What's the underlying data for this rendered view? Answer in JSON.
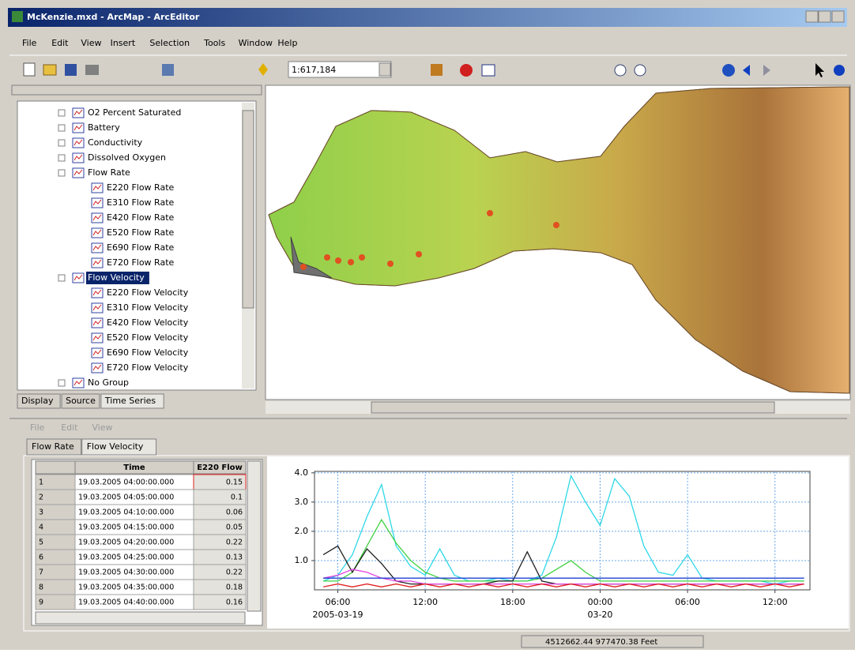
{
  "window_title": "McKenzie.mxd - ArcMap - ArcEditor",
  "menu": [
    "File",
    "Edit",
    "View",
    "Insert",
    "Selection",
    "Tools",
    "Window",
    "Help"
  ],
  "scale": "1:617,184",
  "toc": {
    "items": [
      {
        "label": "O2 Percent Saturated"
      },
      {
        "label": "Battery"
      },
      {
        "label": "Conductivity"
      },
      {
        "label": "Dissolved Oxygen"
      },
      {
        "label": "Flow Rate",
        "children": [
          {
            "label": "E220 Flow Rate"
          },
          {
            "label": "E310 Flow Rate"
          },
          {
            "label": "E420 Flow Rate"
          },
          {
            "label": "E520 Flow Rate"
          },
          {
            "label": "E690 Flow Rate"
          },
          {
            "label": "E720 Flow Rate"
          }
        ]
      },
      {
        "label": "Flow Velocity",
        "selected": true,
        "children": [
          {
            "label": "E220 Flow Velocity"
          },
          {
            "label": "E310 Flow Velocity"
          },
          {
            "label": "E420 Flow Velocity"
          },
          {
            "label": "E520 Flow Velocity"
          },
          {
            "label": "E690 Flow Velocity"
          },
          {
            "label": "E720 Flow Velocity"
          }
        ]
      },
      {
        "label": "No Group"
      }
    ],
    "tabs": [
      "Display",
      "Source",
      "Time Series"
    ]
  },
  "series_panel": {
    "menu": [
      "File",
      "Edit",
      "View"
    ],
    "tabs": [
      "Flow Rate",
      "Flow Velocity"
    ],
    "table": {
      "columns": [
        "Time",
        "E220 Flow"
      ],
      "rows": [
        [
          "1",
          "19.03.2005 04:00:00.000",
          "0.15"
        ],
        [
          "2",
          "19.03.2005 04:05:00.000",
          "0.1"
        ],
        [
          "3",
          "19.03.2005 04:10:00.000",
          "0.06"
        ],
        [
          "4",
          "19.03.2005 04:15:00.000",
          "0.05"
        ],
        [
          "5",
          "19.03.2005 04:20:00.000",
          "0.22"
        ],
        [
          "6",
          "19.03.2005 04:25:00.000",
          "0.13"
        ],
        [
          "7",
          "19.03.2005 04:30:00.000",
          "0.22"
        ],
        [
          "8",
          "19.03.2005 04:35:00.000",
          "0.18"
        ],
        [
          "9",
          "19.03.2005 04:40:00.000",
          "0.16"
        ]
      ]
    }
  },
  "chart_data": {
    "type": "line",
    "x": [
      5,
      6,
      7,
      8,
      9,
      10,
      11,
      12,
      13,
      14,
      15,
      16,
      17,
      18,
      19,
      20,
      21,
      22,
      23,
      24,
      25,
      26,
      27,
      28,
      29,
      30,
      31,
      32,
      33,
      34,
      35,
      36,
      37,
      38
    ],
    "xlim": [
      4.4,
      38.4
    ],
    "xticks": [
      {
        "value": 6,
        "label": "06:00"
      },
      {
        "value": 12,
        "label": "12:00"
      },
      {
        "value": 18,
        "label": "18:00"
      },
      {
        "value": 24,
        "label": "00:00"
      },
      {
        "value": 30,
        "label": "06:00"
      },
      {
        "value": 36,
        "label": "12:00"
      }
    ],
    "xtick_dates": [
      "2005-03-19",
      null,
      null,
      "03-20",
      null,
      null
    ],
    "ylim": [
      0,
      4.05
    ],
    "yticks": [
      {
        "value": 1,
        "label": "1.0"
      },
      {
        "value": 2,
        "label": "2.0"
      },
      {
        "value": 3,
        "label": "3.0"
      },
      {
        "value": 4,
        "label": "4.0"
      }
    ],
    "grid": true,
    "series": [
      {
        "color": "#2fd8e8",
        "values": [
          0.3,
          0.5,
          1.2,
          2.5,
          3.6,
          1.5,
          0.8,
          0.5,
          1.4,
          0.5,
          0.3,
          0.3,
          0.4,
          0.3,
          0.3,
          0.5,
          1.8,
          3.9,
          3.0,
          2.2,
          3.8,
          3.2,
          1.5,
          0.6,
          0.5,
          1.2,
          0.4,
          0.3,
          0.3,
          0.3,
          0.3,
          0.2,
          0.3,
          0.3
        ]
      },
      {
        "color": "#3fd040",
        "values": [
          0.3,
          0.3,
          0.6,
          1.5,
          2.4,
          1.6,
          1.0,
          0.6,
          0.4,
          0.3,
          0.3,
          0.3,
          0.3,
          0.3,
          0.3,
          0.4,
          0.7,
          1.0,
          0.6,
          0.3,
          0.3,
          0.3,
          0.3,
          0.3,
          0.3,
          0.3,
          0.3,
          0.3,
          0.3,
          0.3,
          0.3,
          0.3,
          0.3,
          0.3
        ]
      },
      {
        "color": "#202020",
        "values": [
          1.2,
          1.5,
          0.6,
          1.4,
          0.9,
          0.3,
          0.2,
          0.2,
          0.2,
          0.2,
          0.2,
          0.2,
          0.3,
          0.3,
          1.3,
          0.3,
          0.2,
          0.2,
          0.2,
          0.2,
          0.2,
          0.2,
          0.2,
          0.2,
          0.2,
          0.2,
          0.2,
          0.2,
          0.2,
          0.2,
          0.2,
          0.2,
          0.2,
          0.2
        ]
      },
      {
        "color": "#e040e0",
        "values": [
          0.4,
          0.5,
          0.7,
          0.6,
          0.4,
          0.3,
          0.3,
          0.2,
          0.2,
          0.2,
          0.2,
          0.2,
          0.2,
          0.2,
          0.2,
          0.2,
          0.2,
          0.2,
          0.2,
          0.2,
          0.2,
          0.2,
          0.2,
          0.2,
          0.2,
          0.2,
          0.2,
          0.2,
          0.2,
          0.2,
          0.2,
          0.2,
          0.2,
          0.2
        ]
      },
      {
        "color": "#e02020",
        "values": [
          0.1,
          0.2,
          0.1,
          0.2,
          0.1,
          0.2,
          0.1,
          0.2,
          0.1,
          0.2,
          0.1,
          0.2,
          0.1,
          0.2,
          0.1,
          0.2,
          0.1,
          0.2,
          0.1,
          0.2,
          0.1,
          0.2,
          0.1,
          0.2,
          0.1,
          0.2,
          0.1,
          0.2,
          0.1,
          0.2,
          0.1,
          0.2,
          0.1,
          0.2
        ]
      },
      {
        "color": "#2040d0",
        "values": [
          0.4,
          0.4,
          0.4,
          0.4,
          0.4,
          0.4,
          0.4,
          0.4,
          0.4,
          0.4,
          0.4,
          0.4,
          0.4,
          0.4,
          0.4,
          0.4,
          0.4,
          0.4,
          0.4,
          0.4,
          0.4,
          0.4,
          0.4,
          0.4,
          0.4,
          0.4,
          0.4,
          0.4,
          0.4,
          0.4,
          0.4,
          0.4,
          0.4,
          0.4
        ]
      }
    ]
  },
  "status": "4512662.44  977470.38 Feet"
}
